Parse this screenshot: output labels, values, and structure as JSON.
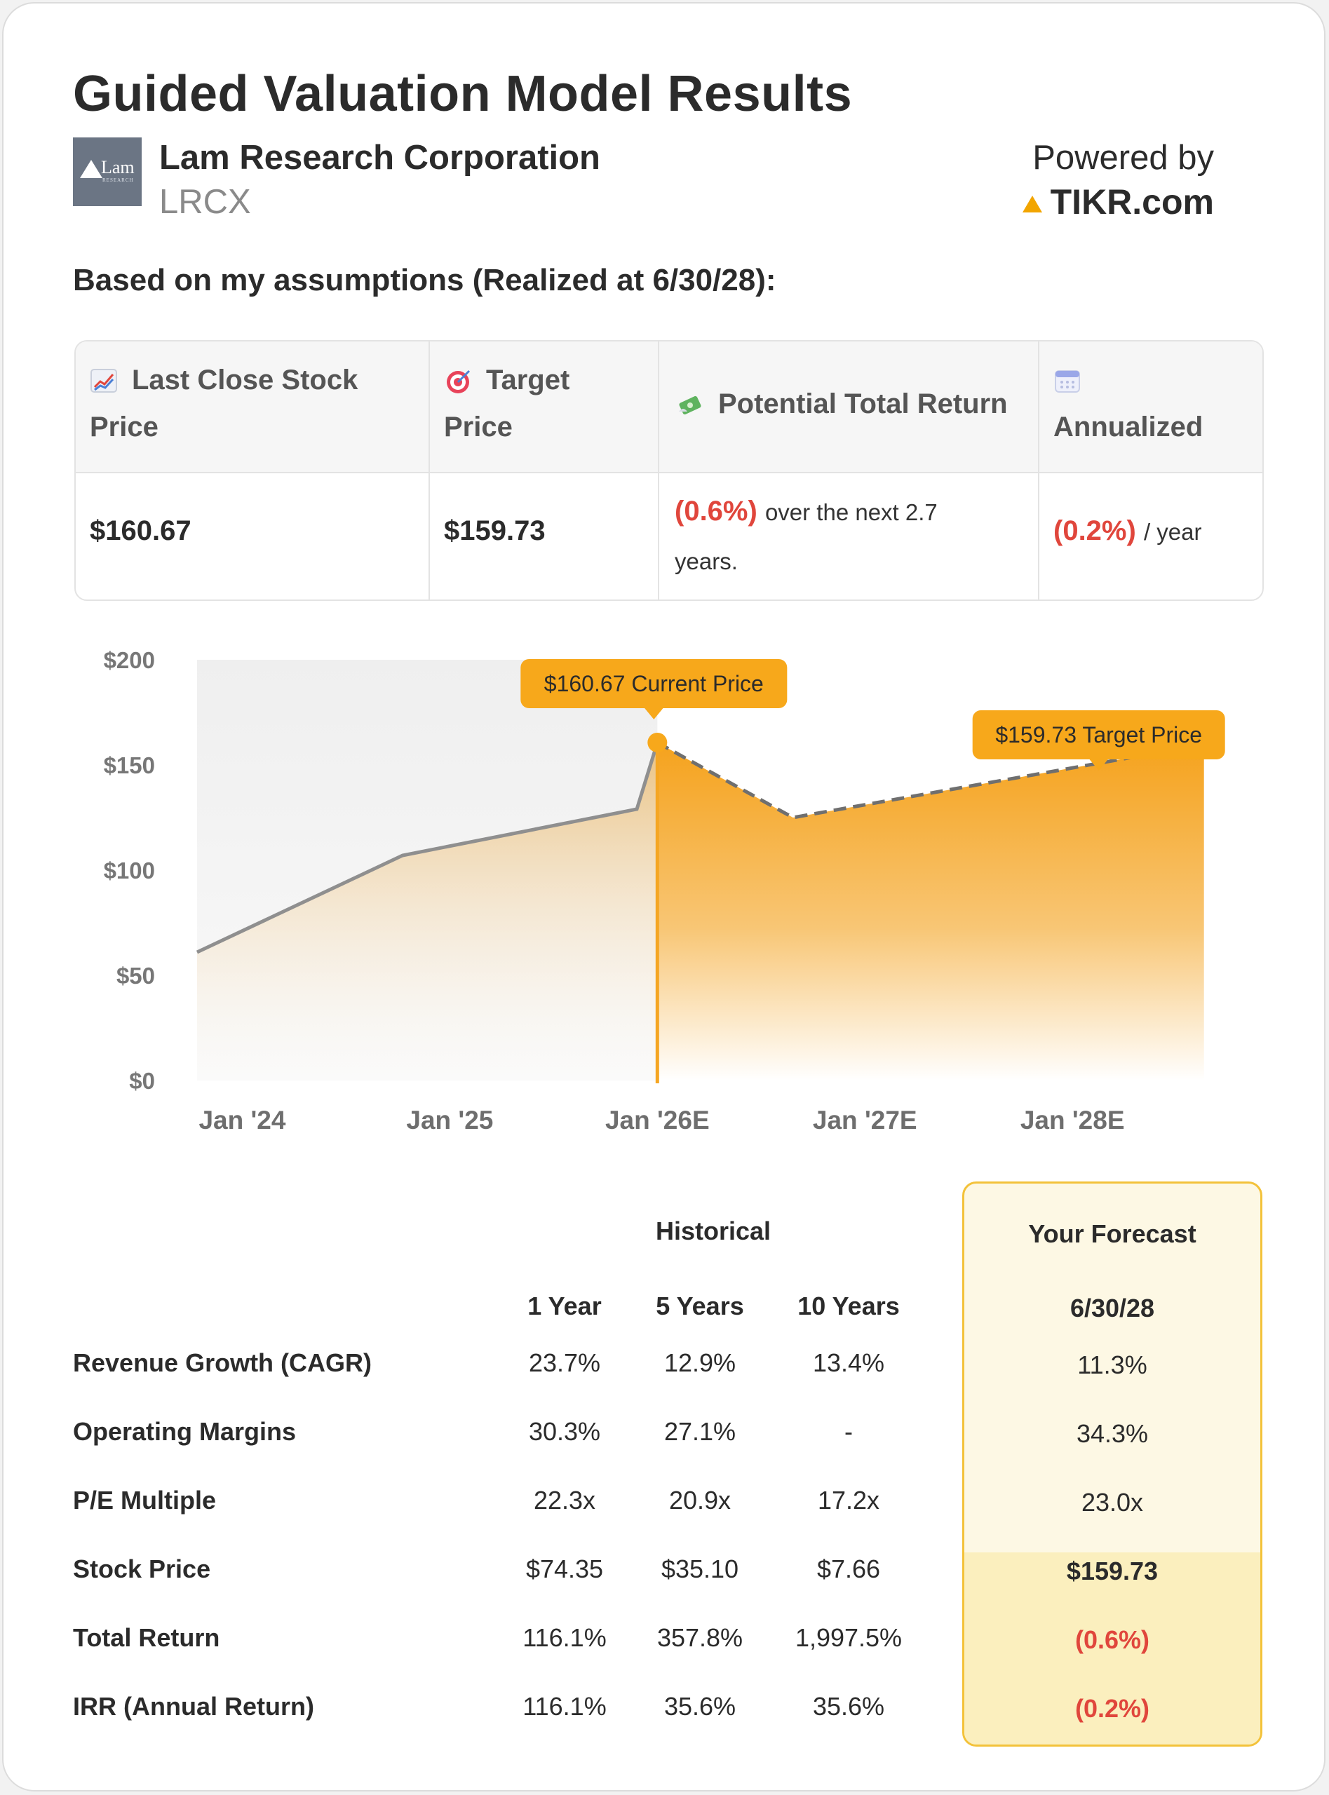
{
  "header": {
    "title": "Guided Valuation Model Results",
    "company": "Lam Research Corporation",
    "ticker": "LRCX",
    "logo_text": "Lam",
    "logo_sub": "RESEARCH",
    "powered_by": "Powered by",
    "brand": "TIKR.com"
  },
  "subtitle": "Based on my assumptions (Realized at 6/30/28):",
  "summary": {
    "columns": [
      {
        "icon": "chart-increasing-icon",
        "label_line1": "Last Close Stock",
        "label_line2": "Price",
        "value": "$160.67"
      },
      {
        "icon": "target-icon",
        "label_line1": "Target",
        "label_line2": "Price",
        "value": "$159.73"
      },
      {
        "icon": "money-wings-icon",
        "label_line1": "Potential Total Return",
        "value_neg": "(0.6%)",
        "value_suffix": "over the next 2.7",
        "value_suffix2": "years."
      },
      {
        "icon": "calendar-icon",
        "label_line1": "Annualized",
        "value_neg": "(0.2%)",
        "value_suffix": "/ year"
      }
    ]
  },
  "chart_data": {
    "type": "area",
    "y_ticks": [
      "$0",
      "$50",
      "$100",
      "$150",
      "$200"
    ],
    "ylim": [
      0,
      200
    ],
    "x_ticks": [
      "Jan '24",
      "Jan '25",
      "Jan '26E",
      "Jan '27E",
      "Jan '28E"
    ],
    "series": [
      {
        "name": "Historical",
        "points": [
          {
            "x": 2023.6,
            "y": 61
          },
          {
            "x": 2024.6,
            "y": 107
          },
          {
            "x": 2025.74,
            "y": 129
          },
          {
            "x": 2025.84,
            "y": 160.67
          }
        ]
      },
      {
        "name": "Forecast",
        "points": [
          {
            "x": 2025.84,
            "y": 160.67
          },
          {
            "x": 2026.5,
            "y": 125
          },
          {
            "x": 2028.5,
            "y": 159.73
          }
        ]
      }
    ],
    "annotations": [
      {
        "label": "$160.67 Current Price",
        "x": 2025.84,
        "y": 160.67
      },
      {
        "label": "$159.73 Target Price",
        "x": 2028.5,
        "y": 159.73
      }
    ],
    "colors": {
      "historical_line": "#8f8f8f",
      "forecast_line": "#6f6f6f",
      "accent": "#f5a623",
      "tooltip": "#f7a81b"
    }
  },
  "metrics": {
    "historical_label": "Historical",
    "forecast_label": "Your Forecast",
    "col_headers": [
      "1 Year",
      "5 Years",
      "10 Years"
    ],
    "forecast_header": "6/30/28",
    "rows": [
      {
        "label": "Revenue Growth (CAGR)",
        "values": [
          "23.7%",
          "12.9%",
          "13.4%"
        ],
        "forecast": "11.3%"
      },
      {
        "label": "Operating Margins",
        "values": [
          "30.3%",
          "27.1%",
          "-"
        ],
        "forecast": "34.3%"
      },
      {
        "label": "P/E Multiple",
        "values": [
          "22.3x",
          "20.9x",
          "17.2x"
        ],
        "forecast": "23.0x"
      },
      {
        "label": "Stock Price",
        "values": [
          "$74.35",
          "$35.10",
          "$7.66"
        ],
        "forecast": "$159.73"
      },
      {
        "label": "Total Return",
        "values": [
          "116.1%",
          "357.8%",
          "1,997.5%"
        ],
        "forecast": "(0.6%)"
      },
      {
        "label": "IRR (Annual Return)",
        "values": [
          "116.1%",
          "35.6%",
          "35.6%"
        ],
        "forecast": "(0.2%)"
      }
    ]
  }
}
